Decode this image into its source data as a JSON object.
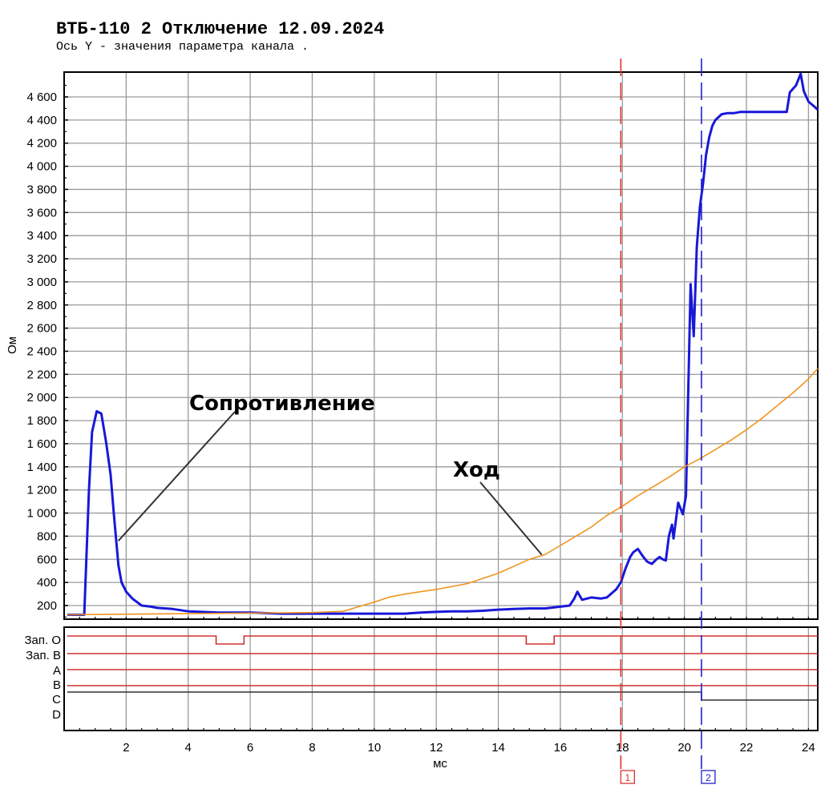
{
  "header": {
    "title": "ВТБ-110 2 Отключение 12.09.2024",
    "subtitle": "Ось Y - значения параметра канала ."
  },
  "chart_data": {
    "type": "line",
    "xlabel": "мс",
    "ylabel": "Ом",
    "xlim": [
      0,
      24.3
    ],
    "ylim": [
      100,
      4800
    ],
    "x_ticks": [
      2,
      4,
      6,
      8,
      10,
      12,
      14,
      16,
      18,
      20,
      22,
      24
    ],
    "x_tick_labels": [
      "2",
      "4",
      "6",
      "8",
      "10",
      "12",
      "14",
      "16",
      "18",
      "20",
      "22",
      "24"
    ],
    "y_ticks": [
      200,
      400,
      600,
      800,
      1000,
      1200,
      1400,
      1600,
      1800,
      2000,
      2200,
      2400,
      2600,
      2800,
      3000,
      3200,
      3400,
      3600,
      3800,
      4000,
      4200,
      4400,
      4600
    ],
    "y_tick_labels": [
      "200",
      "400",
      "600",
      "800",
      "1 000",
      "1 200",
      "1 400",
      "1 600",
      "1 800",
      "2 000",
      "2 200",
      "2 400",
      "2 600",
      "2 800",
      "3 000",
      "3 200",
      "3 400",
      "3 600",
      "3 800",
      "4 000",
      "4 200",
      "4 400",
      "4 600"
    ],
    "grid": true,
    "series": [
      {
        "name": "Сопротивление",
        "color": "#1818d8",
        "x": [
          0.1,
          0.6,
          0.65,
          0.8,
          0.9,
          1.05,
          1.2,
          1.35,
          1.5,
          1.6,
          1.75,
          1.85,
          2.0,
          2.2,
          2.5,
          2.8,
          3.0,
          3.5,
          4.0,
          5.0,
          6.0,
          7.0,
          8.0,
          9.0,
          10.0,
          11.0,
          11.5,
          12.0,
          12.5,
          13.0,
          13.5,
          14.0,
          14.5,
          15.0,
          15.5,
          16.0,
          16.3,
          16.45,
          16.55,
          16.7,
          17.0,
          17.3,
          17.5,
          17.8,
          17.95,
          18.1,
          18.25,
          18.35,
          18.5,
          18.65,
          18.8,
          18.95,
          19.1,
          19.2,
          19.3,
          19.4,
          19.5,
          19.6,
          19.65,
          19.8,
          19.95,
          20.05,
          20.2,
          20.3,
          20.4,
          20.5,
          20.6,
          20.7,
          20.8,
          20.9,
          21.0,
          21.2,
          21.4,
          21.6,
          21.8,
          22.0,
          22.5,
          23.0,
          23.3,
          23.4,
          23.6,
          23.75,
          23.85,
          24.0,
          24.3
        ],
        "values": [
          120,
          120,
          120,
          1190,
          1700,
          1880,
          1860,
          1620,
          1330,
          1000,
          550,
          400,
          320,
          260,
          200,
          190,
          180,
          170,
          150,
          140,
          140,
          130,
          130,
          130,
          130,
          130,
          140,
          145,
          150,
          150,
          155,
          165,
          170,
          175,
          175,
          190,
          200,
          260,
          320,
          250,
          270,
          260,
          270,
          340,
          400,
          520,
          620,
          660,
          690,
          630,
          580,
          560,
          600,
          620,
          600,
          590,
          800,
          900,
          780,
          1090,
          990,
          1150,
          2980,
          2530,
          3300,
          3650,
          3850,
          4100,
          4250,
          4350,
          4400,
          4450,
          4460,
          4460,
          4470,
          4470,
          4470,
          4470,
          4470,
          4640,
          4700,
          4800,
          4650,
          4560,
          4490
        ]
      },
      {
        "name": "Ход",
        "color": "#f0941e",
        "x": [
          0.1,
          2.0,
          4.0,
          6.0,
          8.0,
          9.0,
          9.5,
          10.0,
          10.5,
          11.0,
          12.0,
          13.0,
          14.0,
          15.0,
          15.5,
          16.0,
          16.5,
          17.0,
          17.5,
          18.0,
          18.5,
          19.0,
          19.5,
          20.0,
          20.5,
          21.0,
          21.5,
          22.0,
          22.5,
          23.0,
          23.5,
          24.0,
          24.3
        ],
        "values": [
          120,
          125,
          130,
          135,
          140,
          150,
          190,
          230,
          275,
          300,
          340,
          390,
          480,
          600,
          640,
          720,
          800,
          880,
          980,
          1060,
          1150,
          1230,
          1310,
          1400,
          1470,
          1550,
          1630,
          1720,
          1820,
          1930,
          2040,
          2160,
          2250
        ]
      }
    ],
    "annotations": [
      {
        "text": "Сопротивление",
        "x": 1.75,
        "y": 760,
        "label_x": 3.5,
        "label_y": 1950
      },
      {
        "text": "Ход",
        "x": 15.4,
        "y": 640,
        "label_x": 13.3,
        "label_y": 1350
      }
    ],
    "cursors": [
      {
        "label": "1",
        "x": 17.95,
        "color": "#e03030"
      },
      {
        "label": "2",
        "x": 20.55,
        "color": "#2020d0"
      }
    ],
    "digital_channels": [
      {
        "name": "Зап. O",
        "color": "#d03030",
        "segments": [
          [
            0.1,
            4.9,
            1
          ],
          [
            4.9,
            5.8,
            0
          ],
          [
            5.8,
            14.9,
            1
          ],
          [
            14.9,
            15.8,
            0
          ],
          [
            15.8,
            24.3,
            1
          ]
        ]
      },
      {
        "name": "Зап. B",
        "color": "#d03030",
        "segments": [
          [
            0.1,
            24.3,
            1
          ]
        ]
      },
      {
        "name": "A",
        "color": "#d03030",
        "segments": [
          [
            0.1,
            24.3,
            1
          ]
        ]
      },
      {
        "name": "B",
        "color": "#d03030",
        "segments": [
          [
            0.1,
            24.3,
            1
          ]
        ]
      },
      {
        "name": "C",
        "color": "#303030",
        "segments": [
          [
            0.1,
            20.55,
            1
          ],
          [
            20.55,
            24.3,
            0
          ]
        ]
      },
      {
        "name": "D",
        "color": "#303030",
        "segments": []
      }
    ]
  }
}
